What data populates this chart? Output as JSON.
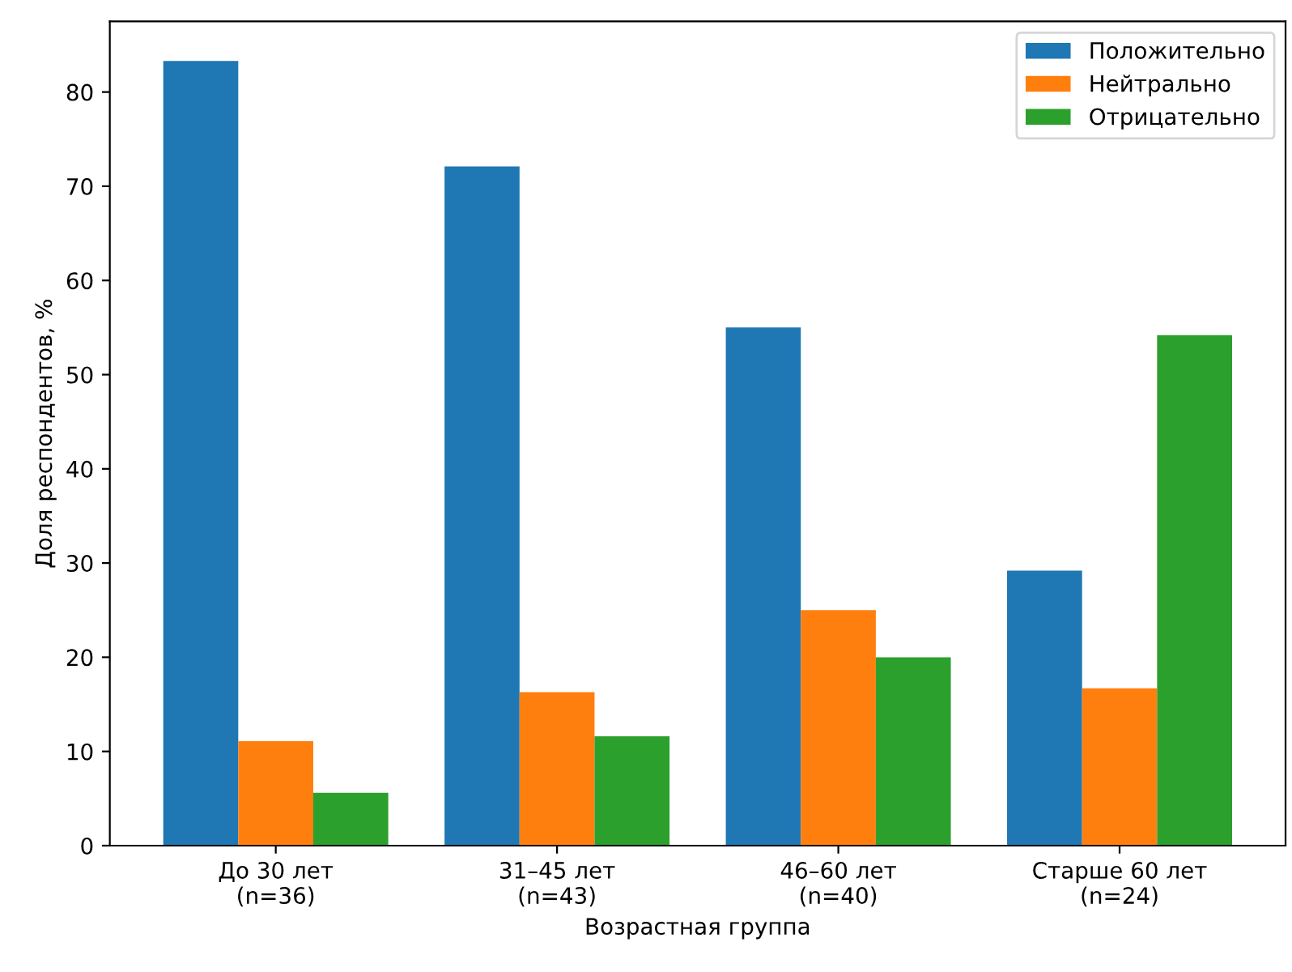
{
  "chart_data": {
    "type": "bar",
    "xlabel": "Возрастная группа",
    "ylabel": "Доля респондентов, %",
    "categories": [
      "До 30 лет\n(n=36)",
      "31–45 лет\n(n=43)",
      "46–60 лет\n(n=40)",
      "Старше 60 лет\n(n=24)"
    ],
    "series": [
      {
        "name": "Положительно",
        "color": "#1f77b4",
        "values": [
          83.3,
          72.1,
          55.0,
          29.2
        ]
      },
      {
        "name": "Нейтрально",
        "color": "#ff7f0e",
        "values": [
          11.1,
          16.3,
          25.0,
          16.7
        ]
      },
      {
        "name": "Отрицательно",
        "color": "#2ca02c",
        "values": [
          5.6,
          11.6,
          20.0,
          54.2
        ]
      }
    ],
    "ylim": [
      0,
      87.5
    ],
    "yticks": [
      0,
      10,
      20,
      30,
      40,
      50,
      60,
      70,
      80
    ],
    "legend": "top right",
    "grid": false
  }
}
